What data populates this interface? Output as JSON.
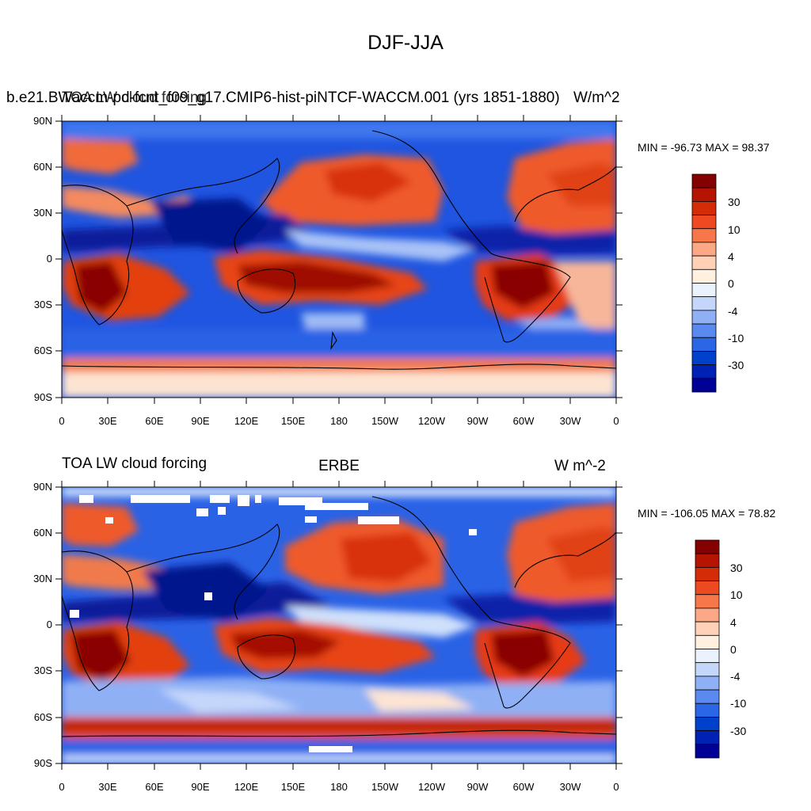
{
  "title": "DJF-JJA",
  "colorbar": {
    "colors": [
      "#000096",
      "#0022b4",
      "#0041cc",
      "#2a66e6",
      "#5a8af0",
      "#8fb0f5",
      "#c4d7fa",
      "#eaf2fd",
      "#fff0e0",
      "#ffd2b8",
      "#fca887",
      "#f8774a",
      "#ee4a22",
      "#d52c08",
      "#b51500",
      "#850000"
    ],
    "labels": [
      "30",
      "10",
      "4",
      "0",
      "-4",
      "-10",
      "-30"
    ]
  },
  "latitude_labels": [
    "90N",
    "60N",
    "30N",
    "0",
    "30S",
    "60S",
    "90S"
  ],
  "longitude_labels": [
    "0",
    "30E",
    "60E",
    "90E",
    "120E",
    "150E",
    "180",
    "150W",
    "120W",
    "90W",
    "60W",
    "30W",
    "0"
  ],
  "panels": [
    {
      "id": "model",
      "left_text": "b.e21.BWaccm-pd-fcnt_f09_g17.CMIP6-hist-piNTCF-WACCM.001 (yrs 1851-1880)",
      "overlap_left": "TOA LW cloud forcing",
      "overlap_right": "W/m^2",
      "min_max": "MIN = -96.73 MAX =  98.37",
      "has_missing": false
    },
    {
      "id": "obs",
      "left_text": "TOA LW cloud forcing",
      "center_text": "ERBE",
      "right_text": "W m^-2",
      "min_max": "MIN = -106.05 MAX =  78.82",
      "has_missing": true
    }
  ],
  "map_data": {
    "field": "TOA LW cloud forcing difference (DJF minus JJA)",
    "projection": "cylindrical equidistant, 0 to 360 longitude",
    "features": [
      "strong positive over southern Africa, Maritime Continent / northern Australia and central South America",
      "negative band along ~10N-20N from Africa to the western Pacific",
      "positive over the North Pacific and North Atlantic",
      "negative over North America, Eurasia and the Southern Ocean storm track",
      "positive band near 60-70S around Antarctica"
    ]
  }
}
